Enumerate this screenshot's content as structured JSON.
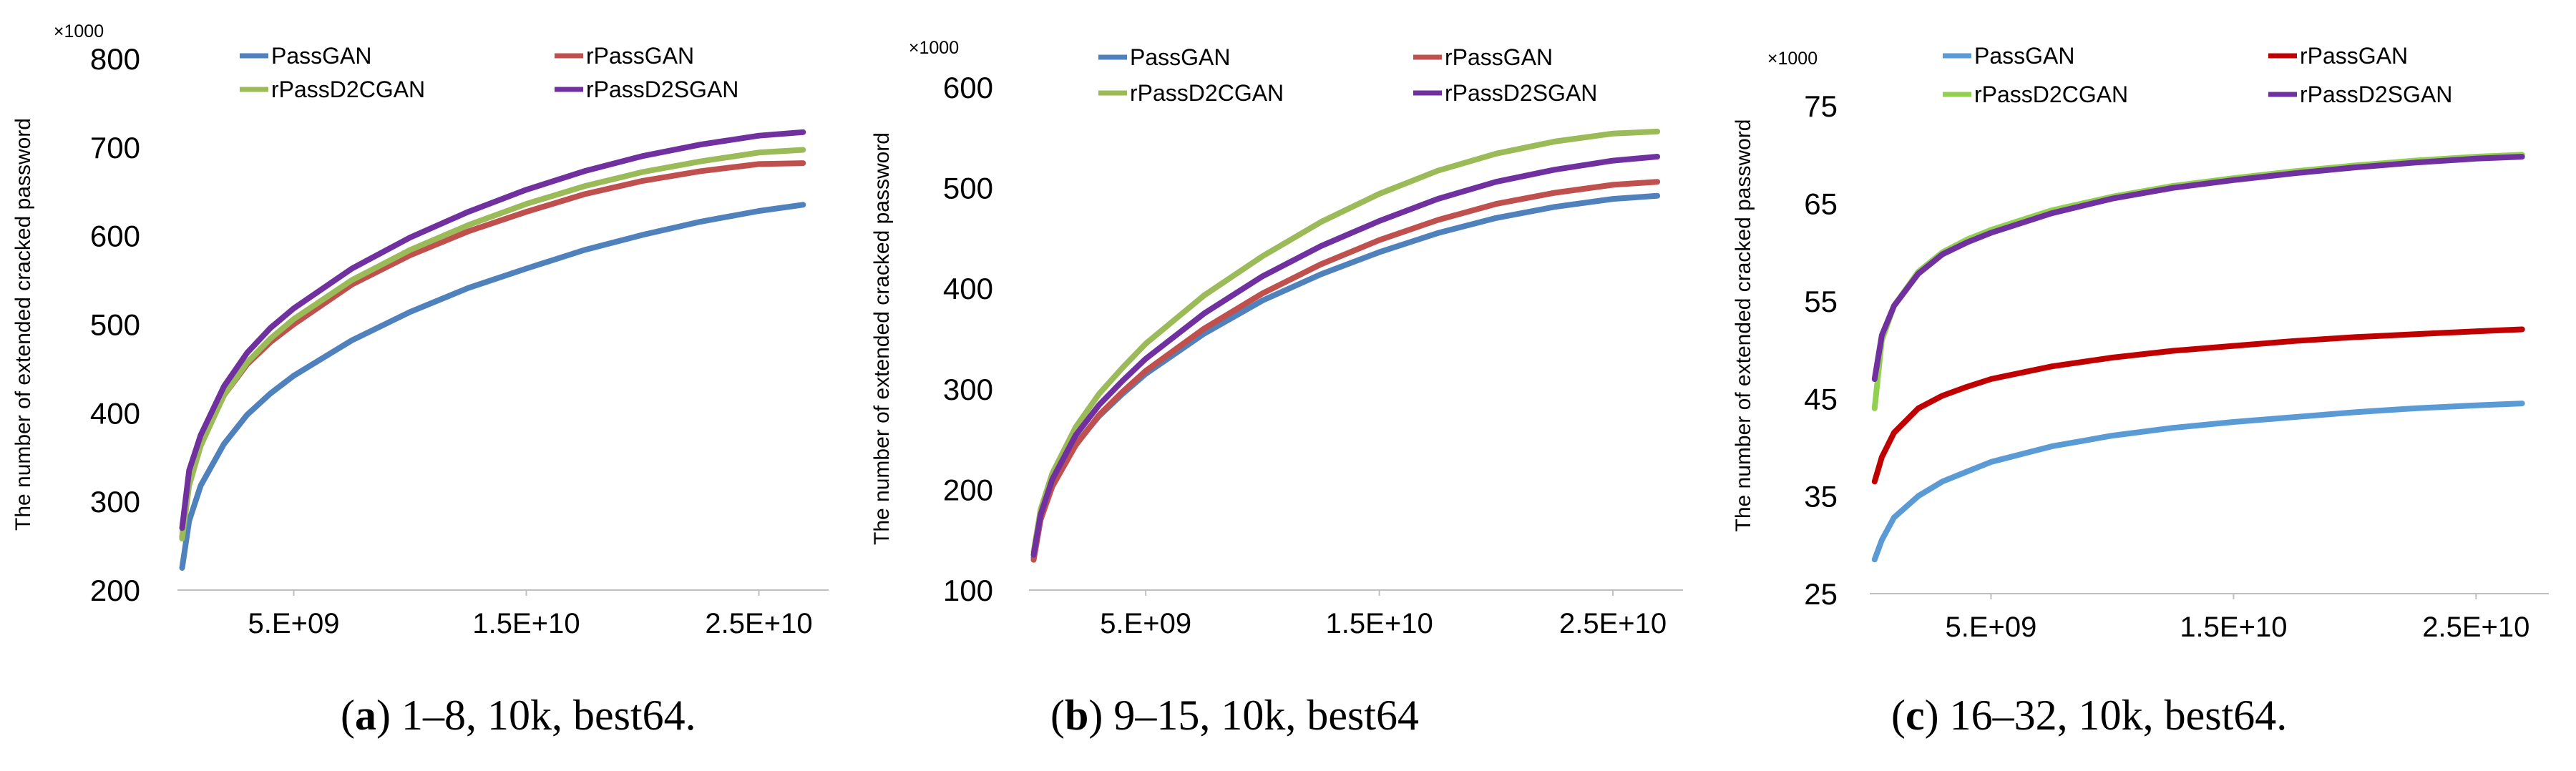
{
  "figure": {
    "charts": [
      {
        "caption_label": "a",
        "caption_text": "1–8, 10k, best64."
      },
      {
        "caption_label": "b",
        "caption_text": "9–15, 10k, best64"
      },
      {
        "caption_label": "c",
        "caption_text": "16–32, 10k, best64."
      }
    ]
  },
  "chart_data": [
    {
      "type": "line",
      "title": "",
      "xlabel": "",
      "ylabel": "The number of extended cracked password",
      "multiplier_label": "×1000",
      "xlim": [
        0,
        28000000000
      ],
      "ylim": [
        200,
        800
      ],
      "yticks": [
        200,
        300,
        400,
        500,
        600,
        700,
        800
      ],
      "xticks": [
        5000000000,
        15000000000,
        25000000000
      ],
      "xtick_labels": [
        "5.E+09",
        "1.5E+10",
        "2.5E+10"
      ],
      "x": [
        200000000,
        500000000,
        1000000000,
        2000000000,
        3000000000,
        4000000000,
        5000000000,
        7500000000,
        10000000000,
        12500000000,
        15000000000,
        17500000000,
        20000000000,
        22500000000,
        25000000000,
        26900000000
      ],
      "series": [
        {
          "name": "PassGAN",
          "color": "#4f81bd",
          "values": [
            225,
            278,
            318,
            365,
            398,
            422,
            442,
            482,
            514,
            541,
            563,
            584,
            601,
            616,
            628,
            635
          ]
        },
        {
          "name": "rPassGAN",
          "color": "#c0504d",
          "values": [
            260,
            322,
            365,
            420,
            455,
            480,
            500,
            545,
            578,
            605,
            627,
            647,
            662,
            673,
            681,
            682
          ]
        },
        {
          "name": "rPassD2CGAN",
          "color": "#9bbb59",
          "values": [
            258,
            318,
            363,
            420,
            457,
            484,
            506,
            550,
            584,
            612,
            636,
            656,
            672,
            684,
            694,
            697
          ]
        },
        {
          "name": "rPassD2SGAN",
          "color": "#7030a0",
          "values": [
            270,
            335,
            375,
            430,
            468,
            496,
            518,
            563,
            598,
            627,
            652,
            673,
            690,
            703,
            713,
            717
          ]
        }
      ]
    },
    {
      "type": "line",
      "title": "",
      "xlabel": "",
      "ylabel": "The number of extended cracked password",
      "multiplier_label": "×1000",
      "xlim": [
        0,
        28000000000
      ],
      "ylim": [
        100,
        600
      ],
      "yticks": [
        100,
        200,
        300,
        400,
        500,
        600
      ],
      "xticks": [
        5000000000,
        15000000000,
        25000000000
      ],
      "xtick_labels": [
        "5.E+09",
        "1.5E+10",
        "2.5E+10"
      ],
      "x": [
        200000000,
        500000000,
        1000000000,
        2000000000,
        3000000000,
        4000000000,
        5000000000,
        7500000000,
        10000000000,
        12500000000,
        15000000000,
        17500000000,
        20000000000,
        22500000000,
        25000000000,
        26900000000
      ],
      "series": [
        {
          "name": "PassGAN",
          "color": "#4f81bd",
          "values": [
            132,
            172,
            205,
            245,
            273,
            295,
            315,
            355,
            388,
            414,
            436,
            455,
            470,
            481,
            489,
            492
          ]
        },
        {
          "name": "rPassGAN",
          "color": "#c0504d",
          "values": [
            130,
            170,
            203,
            244,
            274,
            297,
            318,
            360,
            395,
            424,
            448,
            468,
            484,
            495,
            503,
            506
          ]
        },
        {
          "name": "rPassD2CGAN",
          "color": "#9bbb59",
          "values": [
            138,
            180,
            216,
            262,
            295,
            321,
            345,
            393,
            432,
            466,
            494,
            517,
            534,
            546,
            554,
            556
          ]
        },
        {
          "name": "rPassD2SGAN",
          "color": "#7030a0",
          "values": [
            135,
            175,
            210,
            254,
            284,
            308,
            330,
            375,
            412,
            442,
            467,
            489,
            506,
            518,
            527,
            531
          ]
        }
      ]
    },
    {
      "type": "line",
      "title": "",
      "xlabel": "",
      "ylabel": "The number of extended cracked password",
      "multiplier_label": "×1000",
      "xlim": [
        0,
        28000000000
      ],
      "ylim": [
        25,
        80
      ],
      "yticks": [
        25,
        35,
        45,
        55,
        65,
        75
      ],
      "xticks": [
        5000000000,
        15000000000,
        25000000000
      ],
      "xtick_labels": [
        "5.E+09",
        "1.5E+10",
        "2.5E+10"
      ],
      "x": [
        200000000,
        500000000,
        1000000000,
        2000000000,
        3000000000,
        4000000000,
        5000000000,
        7500000000,
        10000000000,
        12500000000,
        15000000000,
        17500000000,
        20000000000,
        22500000000,
        25000000000,
        26900000000
      ],
      "series": [
        {
          "name": "PassGAN",
          "color": "#5b9bd5",
          "values": [
            28.5,
            30.5,
            32.8,
            35,
            36.5,
            37.5,
            38.5,
            40.1,
            41.2,
            42,
            42.6,
            43.1,
            43.6,
            44,
            44.3,
            44.5
          ]
        },
        {
          "name": "rPassGAN",
          "color": "#c00000",
          "values": [
            36.5,
            39,
            41.5,
            44,
            45.3,
            46.2,
            47,
            48.3,
            49.2,
            49.9,
            50.4,
            50.9,
            51.3,
            51.6,
            51.9,
            52.1
          ]
        },
        {
          "name": "rPassD2CGAN",
          "color": "#92d050",
          "values": [
            44,
            51,
            54.5,
            58,
            60,
            61.3,
            62.3,
            64.3,
            65.7,
            66.8,
            67.6,
            68.3,
            68.9,
            69.4,
            69.8,
            70
          ]
        },
        {
          "name": "rPassD2SGAN",
          "color": "#7030a0",
          "values": [
            47,
            51.5,
            54.5,
            57.8,
            59.8,
            61,
            62,
            64,
            65.5,
            66.6,
            67.4,
            68.1,
            68.7,
            69.2,
            69.6,
            69.8
          ]
        }
      ]
    }
  ]
}
